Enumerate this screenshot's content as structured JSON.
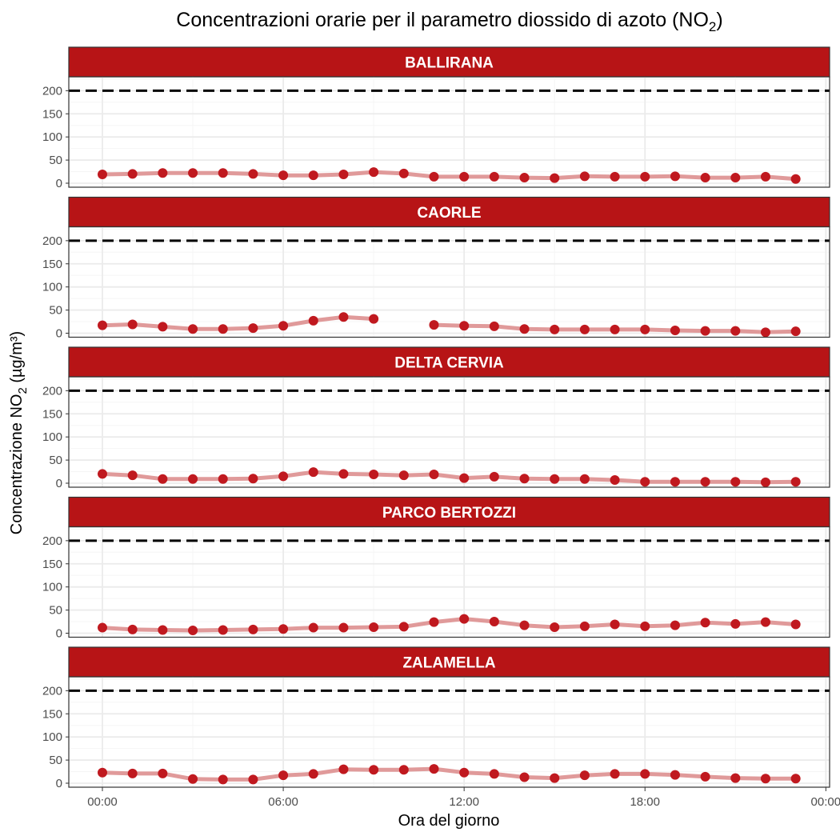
{
  "chart_data": {
    "type": "line",
    "title_prefix": "Concentrazioni orarie per il parametro diossido di azoto (NO",
    "title_sub": "2",
    "title_suffix": ")",
    "xlabel": "Ora del giorno",
    "ylabel_prefix": "Concentrazione NO",
    "ylabel_sub": "2",
    "ylabel_suffix": " (µg/m³)",
    "x_hours": [
      0,
      1,
      2,
      3,
      4,
      5,
      6,
      7,
      8,
      9,
      10,
      11,
      12,
      13,
      14,
      15,
      16,
      17,
      18,
      19,
      20,
      21,
      22,
      23
    ],
    "x_ticks": [
      "00:00",
      "06:00",
      "12:00",
      "18:00",
      "00:00"
    ],
    "x_tick_hours": [
      0,
      6,
      12,
      18,
      24
    ],
    "y_ticks": [
      "0",
      "50",
      "100",
      "150",
      "200"
    ],
    "y_tick_values": [
      0,
      50,
      100,
      150,
      200
    ],
    "ylim": [
      0,
      200
    ],
    "threshold": 200,
    "colors": {
      "strip": "#b71416",
      "point": "#c0191f",
      "line": "#e09a9a",
      "threshold": "#000000"
    },
    "series": [
      {
        "name": "BALLIRANA",
        "values": [
          19,
          20,
          22,
          22,
          22,
          20,
          17,
          17,
          19,
          24,
          21,
          14,
          14,
          14,
          12,
          11,
          15,
          14,
          14,
          15,
          12,
          12,
          14,
          9
        ]
      },
      {
        "name": "CAORLE",
        "values": [
          17,
          19,
          14,
          9,
          9,
          11,
          16,
          27,
          35,
          31,
          null,
          18,
          16,
          15,
          9,
          8,
          8,
          8,
          8,
          6,
          5,
          5,
          2,
          4
        ]
      },
      {
        "name": "DELTA CERVIA",
        "values": [
          20,
          17,
          9,
          9,
          9,
          10,
          15,
          24,
          20,
          19,
          17,
          19,
          11,
          14,
          10,
          9,
          9,
          7,
          3,
          3,
          3,
          3,
          2,
          3
        ]
      },
      {
        "name": "PARCO BERTOZZI",
        "values": [
          12,
          8,
          7,
          6,
          7,
          8,
          9,
          12,
          12,
          13,
          14,
          24,
          31,
          25,
          17,
          13,
          15,
          19,
          15,
          17,
          23,
          20,
          24,
          19
        ]
      },
      {
        "name": "ZALAMELLA",
        "values": [
          23,
          21,
          21,
          9,
          8,
          8,
          17,
          20,
          30,
          29,
          29,
          31,
          23,
          20,
          13,
          11,
          17,
          20,
          20,
          18,
          14,
          11,
          10,
          10
        ]
      }
    ]
  }
}
